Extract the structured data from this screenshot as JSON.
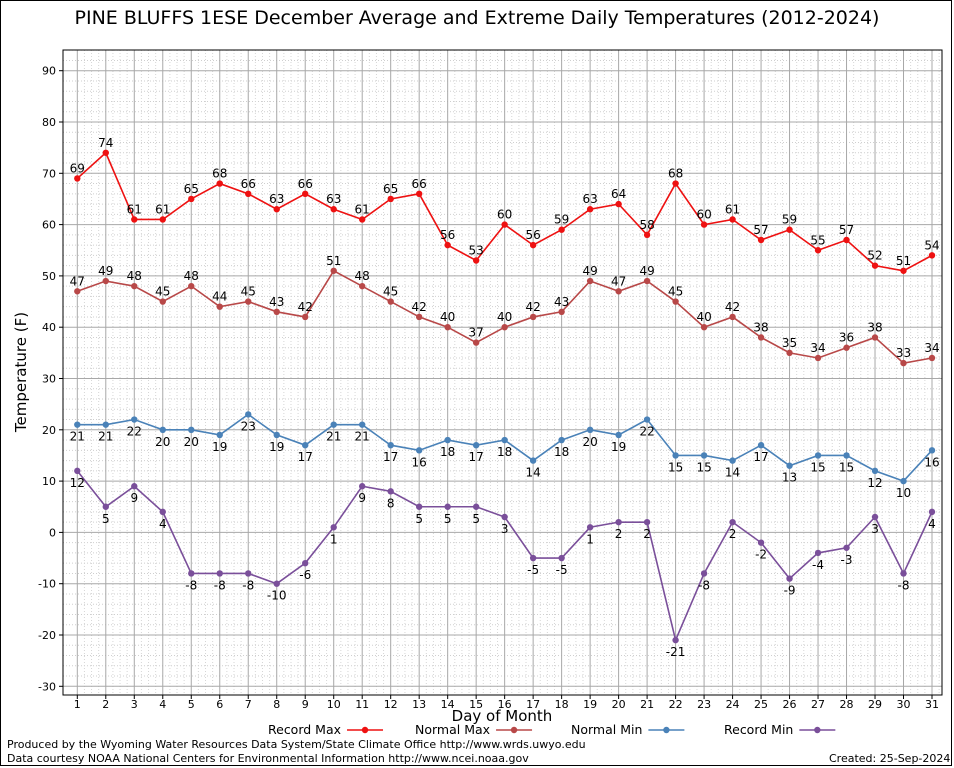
{
  "chart_data": {
    "type": "line",
    "title": "PINE BLUFFS 1ESE December Average and Extreme Daily Temperatures (2012-2024)",
    "xlabel": "Day of Month",
    "ylabel": "Temperature (F)",
    "ylim": [
      -32,
      95
    ],
    "yticks": [
      -30,
      -20,
      -10,
      0,
      10,
      20,
      30,
      40,
      50,
      60,
      70,
      80,
      90
    ],
    "x": [
      1,
      2,
      3,
      4,
      5,
      6,
      7,
      8,
      9,
      10,
      11,
      12,
      13,
      14,
      15,
      16,
      17,
      18,
      19,
      20,
      21,
      22,
      23,
      24,
      25,
      26,
      27,
      28,
      29,
      30,
      31
    ],
    "grid": true,
    "legend_position": "bottom",
    "series": [
      {
        "name": "Record Max",
        "color": "#ee1111",
        "label_pos": "above",
        "values": [
          69,
          74,
          61,
          61,
          65,
          68,
          66,
          63,
          66,
          63,
          61,
          65,
          66,
          56,
          53,
          60,
          56,
          59,
          63,
          64,
          58,
          68,
          60,
          61,
          57,
          59,
          55,
          57,
          52,
          51,
          54
        ]
      },
      {
        "name": "Normal Max",
        "color": "#b84848",
        "label_pos": "above",
        "values": [
          47,
          49,
          48,
          45,
          48,
          44,
          45,
          43,
          42,
          51,
          48,
          45,
          42,
          40,
          37,
          40,
          42,
          43,
          49,
          47,
          49,
          45,
          40,
          42,
          38,
          35,
          34,
          36,
          38,
          33,
          34
        ]
      },
      {
        "name": "Normal Min",
        "color": "#4a82b8",
        "label_pos": "below",
        "values": [
          21,
          21,
          22,
          20,
          20,
          19,
          23,
          19,
          17,
          21,
          21,
          17,
          16,
          18,
          17,
          18,
          14,
          18,
          20,
          19,
          22,
          15,
          15,
          14,
          17,
          13,
          15,
          15,
          12,
          10,
          16
        ]
      },
      {
        "name": "Record Min",
        "color": "#7a4f9a",
        "label_pos": "below",
        "values": [
          12,
          5,
          9,
          4,
          -8,
          -8,
          -8,
          -10,
          -6,
          1,
          9,
          8,
          5,
          5,
          5,
          3,
          -5,
          -5,
          1,
          2,
          2,
          -21,
          -8,
          2,
          -2,
          -9,
          -4,
          -3,
          3,
          -8,
          4
        ]
      }
    ]
  },
  "footer": {
    "produced_by": "Produced by the Wyoming Water Resources Data System/State Climate Office http://www.wrds.uwyo.edu",
    "courtesy": "Data courtesy NOAA National Centers for Environmental Information http://www.ncei.noaa.gov",
    "created": "Created:  25-Sep-2024"
  }
}
